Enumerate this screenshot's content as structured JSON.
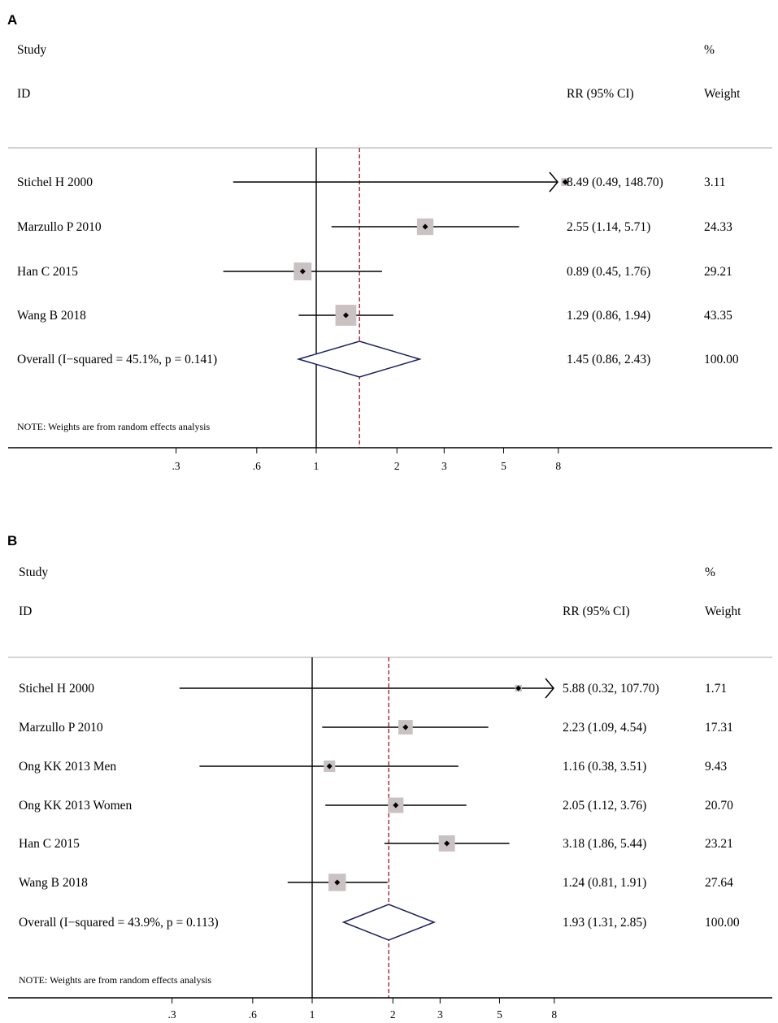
{
  "chart_data": [
    {
      "type": "forest",
      "panel": "A",
      "header": {
        "study": "Study",
        "id": "ID",
        "rr": "RR (95% CI)",
        "pct": "%",
        "weight": "Weight"
      },
      "xscale": "log",
      "null_value": 1,
      "xticks": [
        0.3,
        0.6,
        1,
        2,
        3,
        5,
        8
      ],
      "xtick_labels": [
        ".3",
        ".6",
        "1",
        "2",
        "3",
        "5",
        "8"
      ],
      "studies": [
        {
          "name": "Stichel H 2000",
          "rr": 8.49,
          "lo": 0.49,
          "hi": 148.7,
          "weight": 3.11,
          "rr_text": "8.49 (0.49, 148.70)",
          "weight_text": "3.11",
          "truncated": true
        },
        {
          "name": "Marzullo P 2010",
          "rr": 2.55,
          "lo": 1.14,
          "hi": 5.71,
          "weight": 24.33,
          "rr_text": "2.55 (1.14, 5.71)",
          "weight_text": "24.33"
        },
        {
          "name": "Han C 2015",
          "rr": 0.89,
          "lo": 0.45,
          "hi": 1.76,
          "weight": 29.21,
          "rr_text": "0.89 (0.45, 1.76)",
          "weight_text": "29.21"
        },
        {
          "name": "Wang B 2018",
          "rr": 1.29,
          "lo": 0.86,
          "hi": 1.94,
          "weight": 43.35,
          "rr_text": "1.29 (0.86, 1.94)",
          "weight_text": "43.35"
        }
      ],
      "overall": {
        "name": "Overall  (I−squared = 45.1%, p = 0.141)",
        "rr": 1.45,
        "lo": 0.86,
        "hi": 2.43,
        "rr_text": "1.45 (0.86, 2.43)",
        "weight_text": "100.00"
      },
      "note": "NOTE: Weights are from random effects analysis"
    },
    {
      "type": "forest",
      "panel": "B",
      "header": {
        "study": "Study",
        "id": "ID",
        "rr": "RR (95% CI)",
        "pct": "%",
        "weight": "Weight"
      },
      "xscale": "log",
      "null_value": 1,
      "xticks": [
        0.3,
        0.6,
        1,
        2,
        3,
        5,
        8
      ],
      "xtick_labels": [
        ".3",
        ".6",
        "1",
        "2",
        "3",
        "5",
        "8"
      ],
      "studies": [
        {
          "name": "Stichel H 2000",
          "rr": 5.88,
          "lo": 0.32,
          "hi": 107.7,
          "weight": 1.71,
          "rr_text": "5.88 (0.32, 107.70)",
          "weight_text": "1.71",
          "truncated": true
        },
        {
          "name": "Marzullo P 2010",
          "rr": 2.23,
          "lo": 1.09,
          "hi": 4.54,
          "weight": 17.31,
          "rr_text": "2.23 (1.09, 4.54)",
          "weight_text": "17.31"
        },
        {
          "name": "Ong KK 2013 Men",
          "rr": 1.16,
          "lo": 0.38,
          "hi": 3.51,
          "weight": 9.43,
          "rr_text": "1.16 (0.38, 3.51)",
          "weight_text": "9.43"
        },
        {
          "name": "Ong KK 2013 Women",
          "rr": 2.05,
          "lo": 1.12,
          "hi": 3.76,
          "weight": 20.7,
          "rr_text": "2.05 (1.12, 3.76)",
          "weight_text": "20.70"
        },
        {
          "name": "Han C 2015",
          "rr": 3.18,
          "lo": 1.86,
          "hi": 5.44,
          "weight": 23.21,
          "rr_text": "3.18 (1.86, 5.44)",
          "weight_text": "23.21"
        },
        {
          "name": "Wang B 2018",
          "rr": 1.24,
          "lo": 0.81,
          "hi": 1.91,
          "weight": 27.64,
          "rr_text": "1.24 (0.81, 1.91)",
          "weight_text": "27.64"
        }
      ],
      "overall": {
        "name": "Overall  (I−squared = 43.9%, p = 0.113)",
        "rr": 1.93,
        "lo": 1.31,
        "hi": 2.85,
        "rr_text": "1.93 (1.31, 2.85)",
        "weight_text": "100.00"
      },
      "note": "NOTE: Weights are from random effects analysis"
    }
  ],
  "colors": {
    "box": "#c9c1c2",
    "diamond": "#1a1f5e",
    "ref_line": "#b0202a",
    "axis": "#000000",
    "divider": "#bbbbbb"
  }
}
